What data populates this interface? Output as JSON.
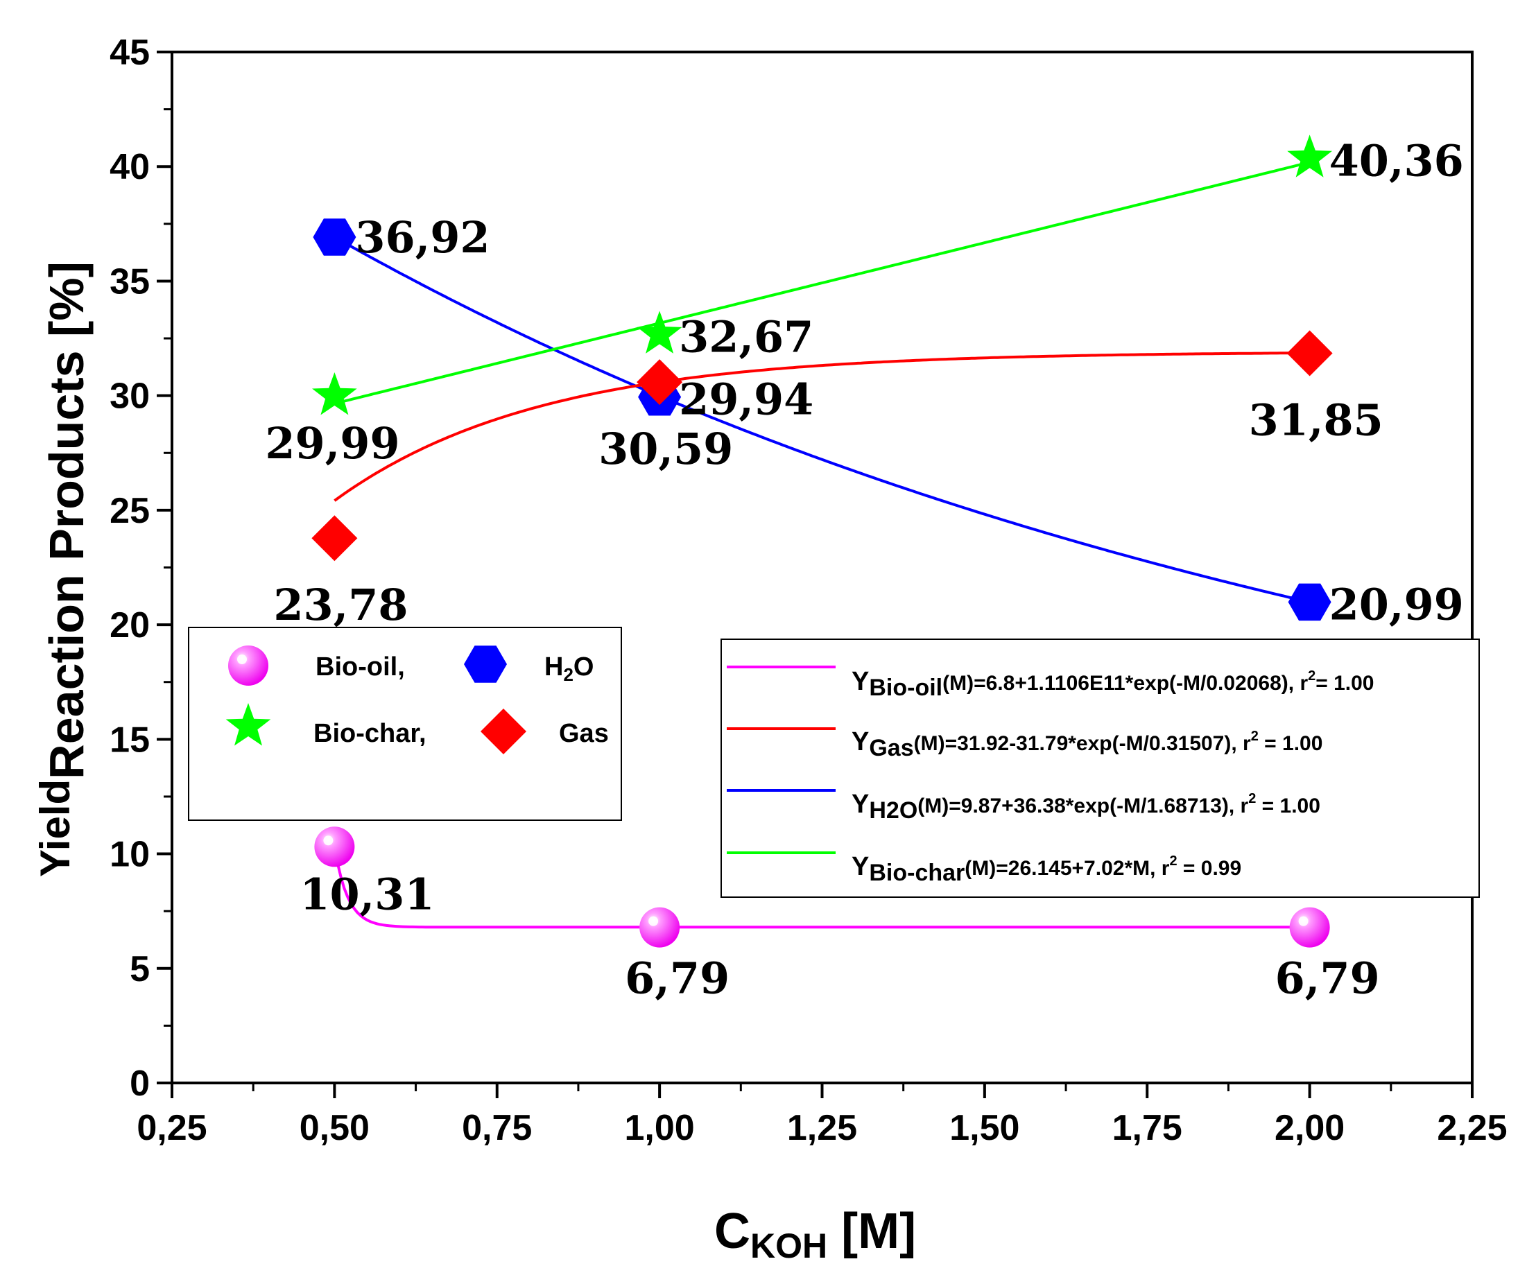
{
  "chart_data": {
    "type": "scatter",
    "xlabel": {
      "main": "C",
      "sub": "KOH",
      "suffix": " [M]"
    },
    "ylabel": {
      "part1": "Yield",
      "part2": "Reaction Products [%]"
    },
    "xlim": [
      0.25,
      2.25
    ],
    "ylim": [
      0,
      45
    ],
    "x_ticks": [
      0.25,
      0.5,
      0.75,
      1.0,
      1.25,
      1.5,
      1.75,
      2.0,
      2.25
    ],
    "x_tick_labels": [
      "0,25",
      "0,50",
      "0,75",
      "1,00",
      "1,25",
      "1,50",
      "1,75",
      "2,00",
      "2,25"
    ],
    "y_ticks": [
      0,
      5,
      10,
      15,
      20,
      25,
      30,
      35,
      40,
      45
    ],
    "y_tick_labels": [
      "0",
      "5",
      "10",
      "15",
      "20",
      "25",
      "30",
      "35",
      "40",
      "45"
    ],
    "series": [
      {
        "name": "Bio-oil,",
        "marker": "sphere",
        "color": "#ff00ff",
        "x": [
          0.5,
          1.0,
          2.0
        ],
        "y": [
          10.31,
          6.79,
          6.79
        ],
        "labels": [
          "10,31",
          "6,79",
          "6,79"
        ],
        "fit": {
          "model": "exp",
          "a": 6.8,
          "b": 111060000000.0,
          "t": 0.02068
        }
      },
      {
        "name": "H",
        "name_sub": "2",
        "name_suffix": "O",
        "marker": "hexagon",
        "color": "#0000ff",
        "x": [
          0.5,
          1.0,
          2.0
        ],
        "y": [
          36.92,
          29.94,
          20.99
        ],
        "labels": [
          "36,92",
          "29,94",
          "20,99"
        ],
        "fit": {
          "model": "exp",
          "a": 9.87,
          "b": 36.38,
          "t": 1.68713
        }
      },
      {
        "name": "Bio-char,",
        "marker": "star",
        "color": "#00ff00",
        "x": [
          0.5,
          1.0,
          2.0
        ],
        "y": [
          29.99,
          32.67,
          40.36
        ],
        "labels": [
          "29,99",
          "32,67",
          "40,36"
        ],
        "fit": {
          "model": "linear",
          "a": 26.145,
          "b": 7.02
        }
      },
      {
        "name": "Gas",
        "marker": "diamond",
        "color": "#ff0000",
        "x": [
          0.5,
          1.0,
          2.0
        ],
        "y": [
          23.78,
          30.59,
          31.85
        ],
        "labels": [
          "23,78",
          "30,59",
          "31,85"
        ],
        "fit": {
          "model": "exp",
          "a": 31.92,
          "b": -31.79,
          "t": 0.31507
        }
      }
    ],
    "fit_legend": [
      {
        "prefix": "Y",
        "sub": "Bio-oil",
        "eq": "(M)=6.8+1.1106E11*exp(-M/0.02068), r",
        "sup": "2",
        "tail": "= 1.00",
        "color": "#ff00ff"
      },
      {
        "prefix": "Y",
        "sub": "Gas",
        "eq": "(M)=31.92-31.79*exp(-M/0.31507), r",
        "sup": "2",
        "tail": " = 1.00",
        "color": "#ff0000"
      },
      {
        "prefix": "Y",
        "sub": "H2O",
        "eq": "(M)=9.87+36.38*exp(-M/1.68713), r",
        "sup": "2",
        "tail": " = 1.00",
        "color": "#0000ff"
      },
      {
        "prefix": "Y",
        "sub": "Bio-char",
        "eq": "(M)=26.145+7.02*M, r",
        "sup": "2",
        "tail": " = 0.99",
        "color": "#00ff00"
      }
    ]
  }
}
